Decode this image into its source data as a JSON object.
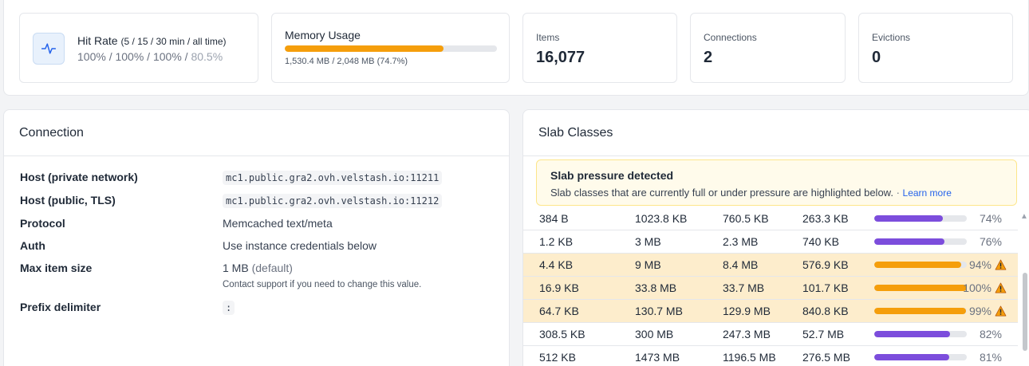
{
  "stats": {
    "hit_rate": {
      "title": "Hit Rate",
      "subtitle": "(5 / 15 / 30 min / all time)",
      "values": [
        "100%",
        "100%",
        "100%",
        "80.5%"
      ],
      "separator": " / ",
      "icon": "activity-icon"
    },
    "memory": {
      "title": "Memory Usage",
      "detail": "1,530.4 MB / 2,048 MB (74.7%)",
      "fraction": 0.747,
      "color": "#f59e0b"
    },
    "items": {
      "label": "Items",
      "value": "16,077"
    },
    "connections": {
      "label": "Connections",
      "value": "2"
    },
    "evictions": {
      "label": "Evictions",
      "value": "0"
    }
  },
  "connection": {
    "title": "Connection",
    "host_private": {
      "label": "Host (private network)",
      "value": "mc1.public.gra2.ovh.velstash.io:11211"
    },
    "host_public": {
      "label": "Host (public, TLS)",
      "value": "mc1.public.gra2.ovh.velstash.io:11212"
    },
    "protocol": {
      "label": "Protocol",
      "value": "Memcached text/meta"
    },
    "auth": {
      "label": "Auth",
      "value": "Use instance credentials below"
    },
    "max_item": {
      "label": "Max item size",
      "value": "1 MB",
      "suffix": "(default)",
      "hint": "Contact support if you need to change this value."
    },
    "prefix": {
      "label": "Prefix delimiter",
      "value": ":"
    }
  },
  "slabs": {
    "title": "Slab Classes",
    "alert": {
      "title": "Slab pressure detected",
      "body": "Slab classes that are currently full or under pressure are highlighted below.",
      "sep": " · ",
      "link": "Learn more"
    },
    "rows": [
      {
        "chunk": "384 B",
        "total": "1023.8 KB",
        "used": "760.5 KB",
        "free": "263.3 KB",
        "pct": "74%",
        "fill": 0.74,
        "warn": false
      },
      {
        "chunk": "1.2 KB",
        "total": "3 MB",
        "used": "2.3 MB",
        "free": "740 KB",
        "pct": "76%",
        "fill": 0.76,
        "warn": false
      },
      {
        "chunk": "4.4 KB",
        "total": "9 MB",
        "used": "8.4 MB",
        "free": "576.9 KB",
        "pct": "94%",
        "fill": 0.94,
        "warn": true
      },
      {
        "chunk": "16.9 KB",
        "total": "33.8 MB",
        "used": "33.7 MB",
        "free": "101.7 KB",
        "pct": "100%",
        "fill": 1.0,
        "warn": true
      },
      {
        "chunk": "64.7 KB",
        "total": "130.7 MB",
        "used": "129.9 MB",
        "free": "840.8 KB",
        "pct": "99%",
        "fill": 0.99,
        "warn": true
      },
      {
        "chunk": "308.5 KB",
        "total": "300 MB",
        "used": "247.3 MB",
        "free": "52.7 MB",
        "pct": "82%",
        "fill": 0.82,
        "warn": false
      },
      {
        "chunk": "512 KB",
        "total": "1473 MB",
        "used": "1196.5 MB",
        "free": "276.5 MB",
        "pct": "81%",
        "fill": 0.81,
        "warn": false
      }
    ],
    "colors": {
      "normal": "#7c4ddc",
      "warn": "#f59e0b",
      "warn_bg": "#fdedcc"
    }
  }
}
